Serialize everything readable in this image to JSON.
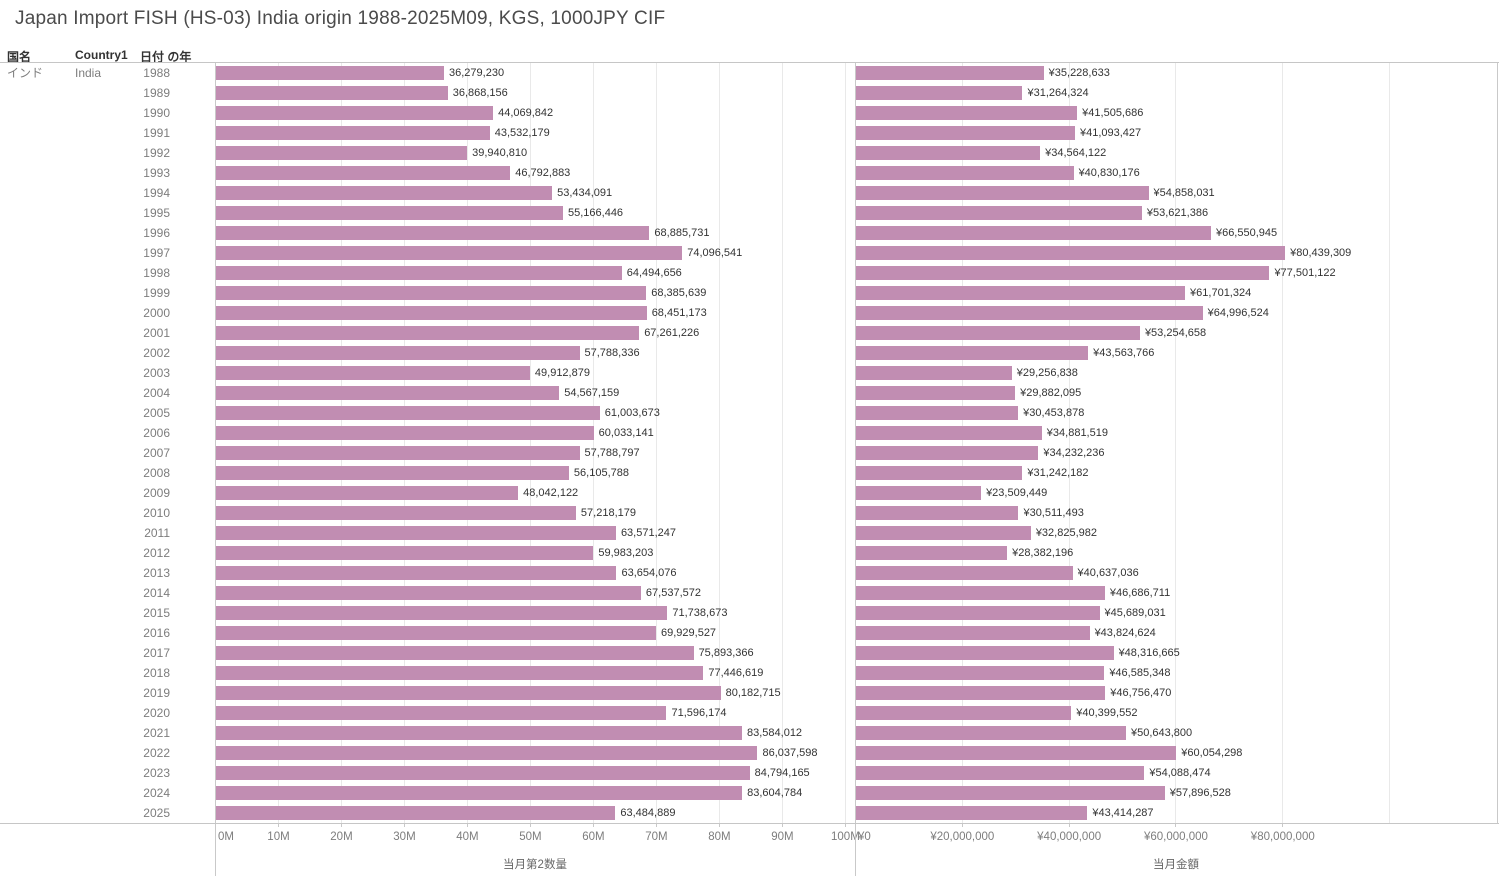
{
  "title": "Japan Import FISH (HS-03) India origin 1988-2025M09, KGS, 1000JPY CIF",
  "columns": {
    "country_jp_header": "国名",
    "country_en_header": "Country1",
    "year_header": "日付 の年"
  },
  "row_labels": {
    "country_jp": "インド",
    "country_en": "India"
  },
  "colors": {
    "bar": "#c18db2",
    "label_text": "#333333",
    "muted_text": "#7d7d7d"
  },
  "chart_data": [
    {
      "type": "bar",
      "orientation": "horizontal",
      "xlabel": "当月第2数量",
      "value_prefix": "",
      "xlim": [
        0,
        101600000
      ],
      "grid": true,
      "categories": [
        1988,
        1989,
        1990,
        1991,
        1992,
        1993,
        1994,
        1995,
        1996,
        1997,
        1998,
        1999,
        2000,
        2001,
        2002,
        2003,
        2004,
        2005,
        2006,
        2007,
        2008,
        2009,
        2010,
        2011,
        2012,
        2013,
        2014,
        2015,
        2016,
        2017,
        2018,
        2019,
        2020,
        2021,
        2022,
        2023,
        2024,
        2025
      ],
      "values": [
        36279230,
        36868156,
        44069842,
        43532179,
        39940810,
        46792883,
        53434091,
        55166446,
        68885731,
        74096541,
        64494656,
        68385639,
        68451173,
        67261226,
        57788336,
        49912879,
        54567159,
        61003673,
        60033141,
        57788797,
        56105788,
        48042122,
        57218179,
        63571247,
        59983203,
        63654076,
        67537572,
        71738673,
        69929527,
        75893366,
        77446619,
        80182715,
        71596174,
        83584012,
        86037598,
        84794165,
        83604784,
        63484889
      ],
      "ticks": [
        {
          "v": 0,
          "label": "0M"
        },
        {
          "v": 10000000,
          "label": "10M"
        },
        {
          "v": 20000000,
          "label": "20M"
        },
        {
          "v": 30000000,
          "label": "30M"
        },
        {
          "v": 40000000,
          "label": "40M"
        },
        {
          "v": 50000000,
          "label": "50M"
        },
        {
          "v": 60000000,
          "label": "60M"
        },
        {
          "v": 70000000,
          "label": "70M"
        },
        {
          "v": 80000000,
          "label": "80M"
        },
        {
          "v": 90000000,
          "label": "90M"
        },
        {
          "v": 100000000,
          "label": "100M"
        }
      ]
    },
    {
      "type": "bar",
      "orientation": "horizontal",
      "xlabel": "当月金額",
      "value_prefix": "¥",
      "xlim": [
        0,
        120200000
      ],
      "grid": true,
      "categories": [
        1988,
        1989,
        1990,
        1991,
        1992,
        1993,
        1994,
        1995,
        1996,
        1997,
        1998,
        1999,
        2000,
        2001,
        2002,
        2003,
        2004,
        2005,
        2006,
        2007,
        2008,
        2009,
        2010,
        2011,
        2012,
        2013,
        2014,
        2015,
        2016,
        2017,
        2018,
        2019,
        2020,
        2021,
        2022,
        2023,
        2024,
        2025
      ],
      "values": [
        35228633,
        31264324,
        41505686,
        41093427,
        34564122,
        40830176,
        54858031,
        53621386,
        66550945,
        80439309,
        77501122,
        61701324,
        64996524,
        53254658,
        43563766,
        29256838,
        29882095,
        30453878,
        34881519,
        34232236,
        31242182,
        23509449,
        30511493,
        32825982,
        28382196,
        40637036,
        46686711,
        45689031,
        43824624,
        48316665,
        46585348,
        46756470,
        40399552,
        50643800,
        60054298,
        54088474,
        57896528,
        43414287
      ],
      "ticks": [
        {
          "v": 0,
          "label": "¥0"
        },
        {
          "v": 20000000,
          "label": "¥20,000,000"
        },
        {
          "v": 40000000,
          "label": "¥40,000,000"
        },
        {
          "v": 60000000,
          "label": "¥60,000,000"
        },
        {
          "v": 80000000,
          "label": "¥80,000,000"
        },
        {
          "v": 100000000,
          "label": ""
        }
      ]
    }
  ]
}
